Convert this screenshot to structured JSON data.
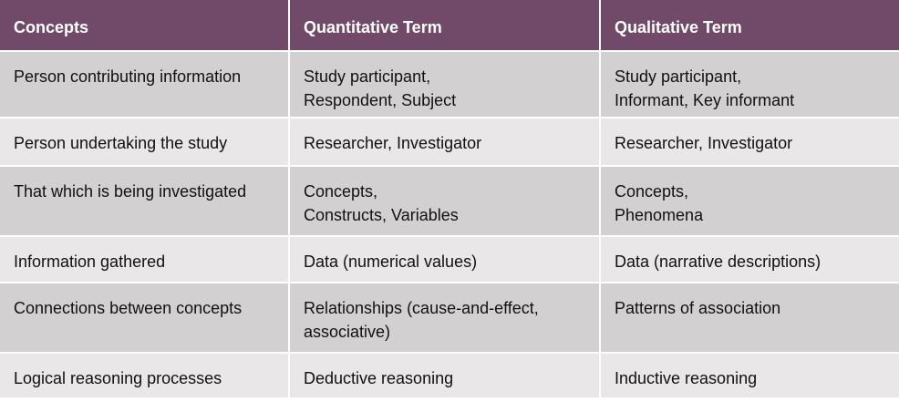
{
  "table": {
    "header": [
      "Concepts",
      "Quantitative Term",
      "Qualitative Term"
    ],
    "rows": [
      [
        [
          "Person contributing information"
        ],
        [
          "Study participant,",
          "Respondent, Subject"
        ],
        [
          "Study participant,",
          "Informant, Key informant"
        ]
      ],
      [
        [
          "Person undertaking the study"
        ],
        [
          "Researcher, Investigator"
        ],
        [
          "Researcher, Investigator"
        ]
      ],
      [
        [
          "That which is being investigated"
        ],
        [
          "Concepts,",
          "Constructs, Variables"
        ],
        [
          "Concepts,",
          "Phenomena"
        ]
      ],
      [
        [
          "Information gathered"
        ],
        [
          "Data (numerical values)"
        ],
        [
          "Data (narrative descriptions)"
        ]
      ],
      [
        [
          "Connections between concepts"
        ],
        [
          "Relationships (cause-and-effect,",
          "associative)"
        ],
        [
          "Patterns of association"
        ]
      ],
      [
        [
          "Logical reasoning processes"
        ],
        [
          "Deductive reasoning"
        ],
        [
          "Inductive reasoning"
        ]
      ]
    ]
  }
}
